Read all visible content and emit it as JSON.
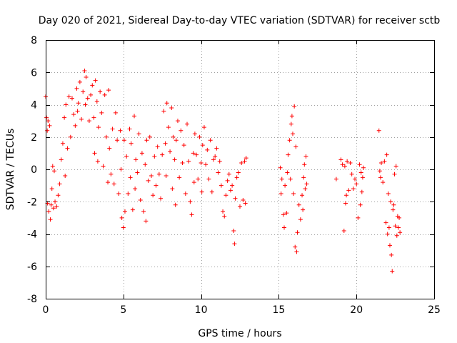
{
  "chart_data": {
    "type": "scatter",
    "title": "Day 020 of 2021, Sidereal Day-to-day VTEC variation (SDTVAR) for receiver sctb",
    "xlabel": "GPS time / hours",
    "ylabel": "SDTVAR / TECUs",
    "xlim": [
      0,
      25
    ],
    "ylim": [
      -8,
      8
    ],
    "xticks": [
      0,
      5,
      10,
      15,
      20,
      25
    ],
    "xtick_labels": [
      "0",
      "5",
      "10",
      "15",
      "20",
      "25"
    ],
    "yticks": [
      -8,
      -6,
      -4,
      -2,
      0,
      2,
      4,
      6,
      8
    ],
    "ytick_labels": [
      "-8",
      "-6",
      "-4",
      "-2",
      "0",
      "2",
      "4",
      "6",
      "8"
    ],
    "grid": true,
    "marker": "+",
    "color": "#ff0000",
    "series": [
      {
        "name": "SDTVAR",
        "points": [
          [
            0.0,
            4.5
          ],
          [
            0.05,
            3.2
          ],
          [
            0.1,
            2.4
          ],
          [
            0.12,
            -2.1
          ],
          [
            0.15,
            3.0
          ],
          [
            0.2,
            -2.6
          ],
          [
            0.25,
            2.7
          ],
          [
            0.3,
            -3.1
          ],
          [
            0.35,
            -2.2
          ],
          [
            0.4,
            -1.2
          ],
          [
            0.45,
            0.2
          ],
          [
            0.5,
            -2.4
          ],
          [
            0.55,
            -0.1
          ],
          [
            0.6,
            -2.0
          ],
          [
            0.7,
            -2.3
          ],
          [
            0.8,
            -1.6
          ],
          [
            0.9,
            -0.9
          ],
          [
            1.0,
            0.6
          ],
          [
            1.1,
            1.6
          ],
          [
            1.2,
            3.2
          ],
          [
            1.25,
            -0.4
          ],
          [
            1.3,
            4.0
          ],
          [
            1.4,
            1.3
          ],
          [
            1.5,
            4.5
          ],
          [
            1.6,
            2.0
          ],
          [
            1.7,
            4.4
          ],
          [
            1.8,
            3.4
          ],
          [
            1.9,
            2.7
          ],
          [
            2.0,
            5.0
          ],
          [
            2.05,
            3.6
          ],
          [
            2.1,
            4.1
          ],
          [
            2.2,
            5.4
          ],
          [
            2.3,
            3.1
          ],
          [
            2.4,
            4.8
          ],
          [
            2.5,
            6.1
          ],
          [
            2.55,
            4.0
          ],
          [
            2.6,
            5.7
          ],
          [
            2.7,
            4.4
          ],
          [
            2.8,
            3.0
          ],
          [
            2.9,
            4.6
          ],
          [
            3.0,
            5.2
          ],
          [
            3.1,
            3.2
          ],
          [
            3.15,
            1.0
          ],
          [
            3.2,
            5.5
          ],
          [
            3.3,
            4.2
          ],
          [
            3.35,
            0.5
          ],
          [
            3.4,
            2.6
          ],
          [
            3.5,
            4.8
          ],
          [
            3.6,
            3.5
          ],
          [
            3.7,
            0.2
          ],
          [
            3.8,
            4.6
          ],
          [
            3.9,
            2.0
          ],
          [
            4.0,
            -0.8
          ],
          [
            4.05,
            4.9
          ],
          [
            4.1,
            1.3
          ],
          [
            4.2,
            -0.3
          ],
          [
            4.3,
            2.5
          ],
          [
            4.4,
            -0.9
          ],
          [
            4.5,
            3.5
          ],
          [
            4.6,
            1.8
          ],
          [
            4.7,
            -1.5
          ],
          [
            4.8,
            2.4
          ],
          [
            4.85,
            0.0
          ],
          [
            4.9,
            -3.0
          ],
          [
            5.0,
            -3.6
          ],
          [
            5.05,
            1.8
          ],
          [
            5.1,
            -2.6
          ],
          [
            5.2,
            0.8
          ],
          [
            5.3,
            -1.5
          ],
          [
            5.4,
            2.5
          ],
          [
            5.45,
            -0.5
          ],
          [
            5.5,
            1.6
          ],
          [
            5.6,
            -2.5
          ],
          [
            5.7,
            3.3
          ],
          [
            5.75,
            -1.2
          ],
          [
            5.8,
            0.6
          ],
          [
            5.9,
            -0.2
          ],
          [
            6.0,
            2.2
          ],
          [
            6.1,
            -1.9
          ],
          [
            6.2,
            1.0
          ],
          [
            6.3,
            -2.6
          ],
          [
            6.4,
            0.3
          ],
          [
            6.45,
            -3.2
          ],
          [
            6.5,
            1.8
          ],
          [
            6.6,
            -0.7
          ],
          [
            6.7,
            2.0
          ],
          [
            6.8,
            -0.4
          ],
          [
            6.9,
            -1.6
          ],
          [
            7.0,
            0.8
          ],
          [
            7.1,
            -1.0
          ],
          [
            7.2,
            1.4
          ],
          [
            7.3,
            -0.3
          ],
          [
            7.4,
            -1.8
          ],
          [
            7.5,
            0.9
          ],
          [
            7.6,
            3.6
          ],
          [
            7.7,
            1.6
          ],
          [
            7.75,
            -0.4
          ],
          [
            7.8,
            4.1
          ],
          [
            7.9,
            2.6
          ],
          [
            8.0,
            1.1
          ],
          [
            8.1,
            3.8
          ],
          [
            8.15,
            -1.2
          ],
          [
            8.2,
            2.0
          ],
          [
            8.3,
            0.6
          ],
          [
            8.35,
            -2.2
          ],
          [
            8.4,
            1.8
          ],
          [
            8.5,
            3.0
          ],
          [
            8.6,
            -0.5
          ],
          [
            8.7,
            2.4
          ],
          [
            8.8,
            0.4
          ],
          [
            8.9,
            1.5
          ],
          [
            9.0,
            -1.5
          ],
          [
            9.1,
            2.8
          ],
          [
            9.2,
            0.5
          ],
          [
            9.3,
            -2.0
          ],
          [
            9.4,
            -2.8
          ],
          [
            9.5,
            1.0
          ],
          [
            9.55,
            -0.8
          ],
          [
            9.6,
            2.2
          ],
          [
            9.7,
            0.9
          ],
          [
            9.8,
            -0.6
          ],
          [
            9.9,
            2.0
          ],
          [
            10.0,
            0.4
          ],
          [
            10.05,
            -1.4
          ],
          [
            10.1,
            1.5
          ],
          [
            10.2,
            2.6
          ],
          [
            10.3,
            0.3
          ],
          [
            10.4,
            1.2
          ],
          [
            10.5,
            -0.6
          ],
          [
            10.6,
            1.8
          ],
          [
            10.7,
            -1.4
          ],
          [
            10.8,
            0.6
          ],
          [
            10.9,
            0.8
          ],
          [
            11.0,
            1.3
          ],
          [
            11.1,
            -0.2
          ],
          [
            11.2,
            0.5
          ],
          [
            11.3,
            -1.0
          ],
          [
            11.4,
            -2.6
          ],
          [
            11.5,
            -2.9
          ],
          [
            11.6,
            -1.6
          ],
          [
            11.7,
            -0.7
          ],
          [
            11.8,
            -0.3
          ],
          [
            11.9,
            -1.3
          ],
          [
            12.0,
            -1.0
          ],
          [
            12.1,
            -3.8
          ],
          [
            12.15,
            -4.6
          ],
          [
            12.2,
            -1.8
          ],
          [
            12.3,
            -0.5
          ],
          [
            12.4,
            -0.2
          ],
          [
            12.5,
            -2.3
          ],
          [
            12.6,
            0.4
          ],
          [
            12.7,
            -1.9
          ],
          [
            12.8,
            0.5
          ],
          [
            12.85,
            -2.1
          ],
          [
            12.9,
            0.7
          ],
          [
            15.1,
            0.1
          ],
          [
            15.15,
            -1.5
          ],
          [
            15.2,
            -0.6
          ],
          [
            15.3,
            -2.8
          ],
          [
            15.35,
            -3.6
          ],
          [
            15.4,
            -1.0
          ],
          [
            15.5,
            -2.7
          ],
          [
            15.55,
            -0.2
          ],
          [
            15.6,
            0.9
          ],
          [
            15.7,
            1.8
          ],
          [
            15.75,
            -0.6
          ],
          [
            15.8,
            2.8
          ],
          [
            15.85,
            3.3
          ],
          [
            15.9,
            2.2
          ],
          [
            15.95,
            -1.5
          ],
          [
            16.0,
            3.9
          ],
          [
            16.05,
            -4.8
          ],
          [
            16.1,
            1.4
          ],
          [
            16.15,
            -5.1
          ],
          [
            16.2,
            -3.9
          ],
          [
            16.3,
            -2.2
          ],
          [
            16.4,
            -3.1
          ],
          [
            16.5,
            -1.6
          ],
          [
            16.55,
            -2.5
          ],
          [
            16.6,
            -0.5
          ],
          [
            16.65,
            0.3
          ],
          [
            16.7,
            -1.2
          ],
          [
            16.75,
            0.8
          ],
          [
            16.8,
            -0.9
          ],
          [
            18.7,
            -0.6
          ],
          [
            19.0,
            0.6
          ],
          [
            19.1,
            0.3
          ],
          [
            19.2,
            -3.8
          ],
          [
            19.25,
            0.2
          ],
          [
            19.3,
            -2.1
          ],
          [
            19.35,
            -1.6
          ],
          [
            19.4,
            0.5
          ],
          [
            19.5,
            -1.3
          ],
          [
            19.6,
            0.4
          ],
          [
            19.7,
            -0.3
          ],
          [
            19.8,
            -1.2
          ],
          [
            19.9,
            -0.6
          ],
          [
            20.0,
            -0.9
          ],
          [
            20.1,
            -3.0
          ],
          [
            20.2,
            0.3
          ],
          [
            20.25,
            -2.2
          ],
          [
            20.3,
            -0.2
          ],
          [
            20.35,
            -1.4
          ],
          [
            20.4,
            -0.5
          ],
          [
            20.45,
            0.1
          ],
          [
            21.45,
            2.4
          ],
          [
            21.5,
            -0.1
          ],
          [
            21.55,
            -0.5
          ],
          [
            21.6,
            0.4
          ],
          [
            21.7,
            -0.8
          ],
          [
            21.8,
            0.5
          ],
          [
            21.9,
            -3.3
          ],
          [
            21.95,
            0.9
          ],
          [
            22.0,
            -4.0
          ],
          [
            22.05,
            -1.5
          ],
          [
            22.1,
            -3.6
          ],
          [
            22.15,
            -4.7
          ],
          [
            22.2,
            -2.0
          ],
          [
            22.25,
            -5.3
          ],
          [
            22.3,
            -6.3
          ],
          [
            22.35,
            -2.5
          ],
          [
            22.4,
            -2.2
          ],
          [
            22.45,
            -0.3
          ],
          [
            22.5,
            -3.5
          ],
          [
            22.55,
            0.2
          ],
          [
            22.6,
            -4.1
          ],
          [
            22.65,
            -2.9
          ],
          [
            22.7,
            -3.6
          ],
          [
            22.75,
            -3.0
          ],
          [
            22.8,
            -3.9
          ]
        ]
      }
    ]
  }
}
